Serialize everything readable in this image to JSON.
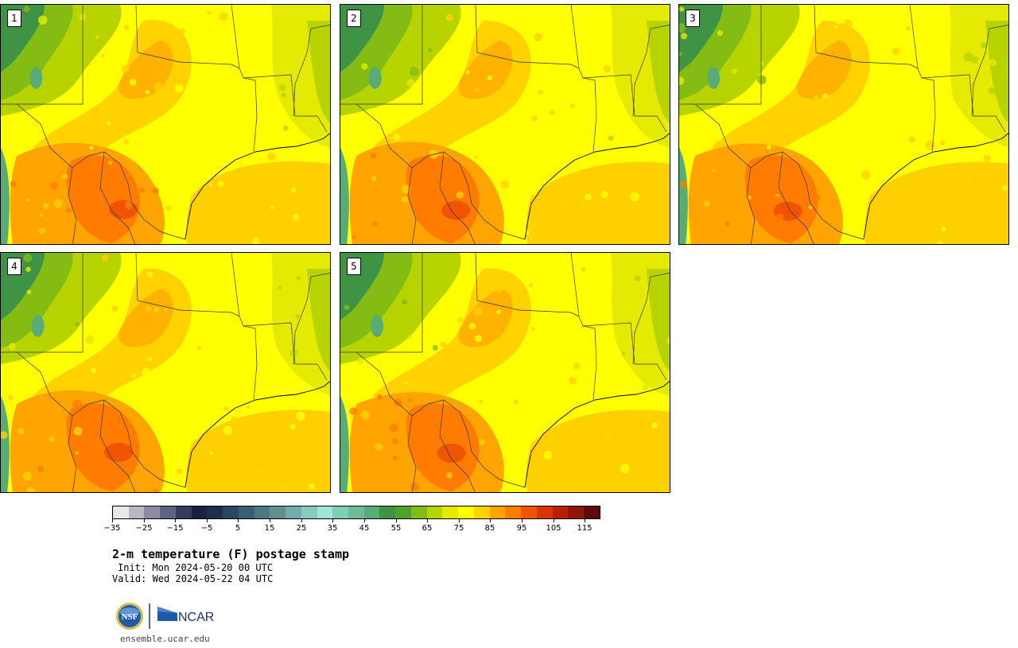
{
  "panels": [
    {
      "label": "1",
      "seed": 1
    },
    {
      "label": "2",
      "seed": 2
    },
    {
      "label": "3",
      "seed": 3
    },
    {
      "label": "4",
      "seed": 4
    },
    {
      "label": "5",
      "seed": 5
    }
  ],
  "colorbar": {
    "colors": [
      "#e8e8ec",
      "#b8b8c4",
      "#8c8ca0",
      "#5e6482",
      "#343c5e",
      "#18223e",
      "#1c2e4e",
      "#2a4662",
      "#3a5e72",
      "#4c7880",
      "#5e9090",
      "#74acac",
      "#8ac8c4",
      "#9ee6dc",
      "#7ed0b0",
      "#6ebc94",
      "#58ac74",
      "#3e9444",
      "#4ea22c",
      "#84bc14",
      "#b8d400",
      "#e4ea00",
      "#ffff00",
      "#ffd200",
      "#ffa400",
      "#ff7c00",
      "#f05400",
      "#d83408",
      "#b81e0c",
      "#901408",
      "#5e0c06"
    ],
    "tick_labels": [
      "−35",
      "−25",
      "−15",
      "−5",
      "5",
      "15",
      "25",
      "35",
      "45",
      "55",
      "65",
      "75",
      "85",
      "95",
      "105",
      "115"
    ]
  },
  "title": "2-m temperature (F) postage stamp",
  "init": "Init: Mon 2024-05-20 00 UTC",
  "valid": "Valid: Wed 2024-05-22 04 UTC",
  "logos": {
    "nsf": "NSF",
    "ncar": "NCAR"
  },
  "site": "ensemble.ucar.edu"
}
